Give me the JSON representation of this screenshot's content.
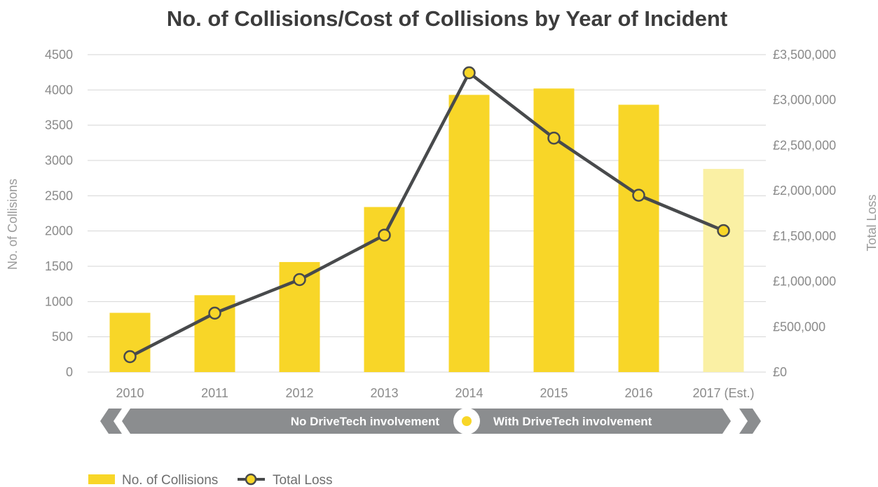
{
  "chart_data": {
    "type": "bar",
    "title": "No. of Collisions/Cost of Collisions by Year of Incident",
    "categories": [
      "2010",
      "2011",
      "2012",
      "2013",
      "2014",
      "2015",
      "2016",
      "2017 (Est.)"
    ],
    "ylabel": "No. of Collisions",
    "y2label": "Total Loss",
    "ylim": [
      0,
      4500
    ],
    "y2lim": [
      0,
      3500000
    ],
    "yticks": [
      "0",
      "500",
      "1000",
      "1500",
      "2000",
      "2500",
      "3000",
      "3500",
      "4000",
      "4500"
    ],
    "y2ticks": [
      "£0",
      "£500,000",
      "£1,000,000",
      "£1,500,000",
      "£2,000,000",
      "£2,500,000",
      "£3,000,000",
      "£3,500,000"
    ],
    "grid": true,
    "legend_position": "bottom-left",
    "series": [
      {
        "name": "No. of Collisions",
        "type": "bar",
        "axis": "left",
        "color": "#f8d628",
        "estimate_color": "#faf0a4",
        "values": [
          840,
          1090,
          1560,
          2340,
          3930,
          4020,
          3790,
          2880
        ]
      },
      {
        "name": "Total Loss",
        "type": "line",
        "axis": "right",
        "line_color": "#484a4c",
        "marker_color": "#f8d628",
        "values": [
          170000,
          650000,
          1020000,
          1510000,
          3300000,
          2580000,
          1950000,
          1560000
        ]
      }
    ],
    "banner": {
      "left_text": "No DriveTech involvement",
      "right_text": "With DriveTech involvement",
      "color": "#8b8d8f",
      "dot_color": "#f8d628"
    }
  }
}
